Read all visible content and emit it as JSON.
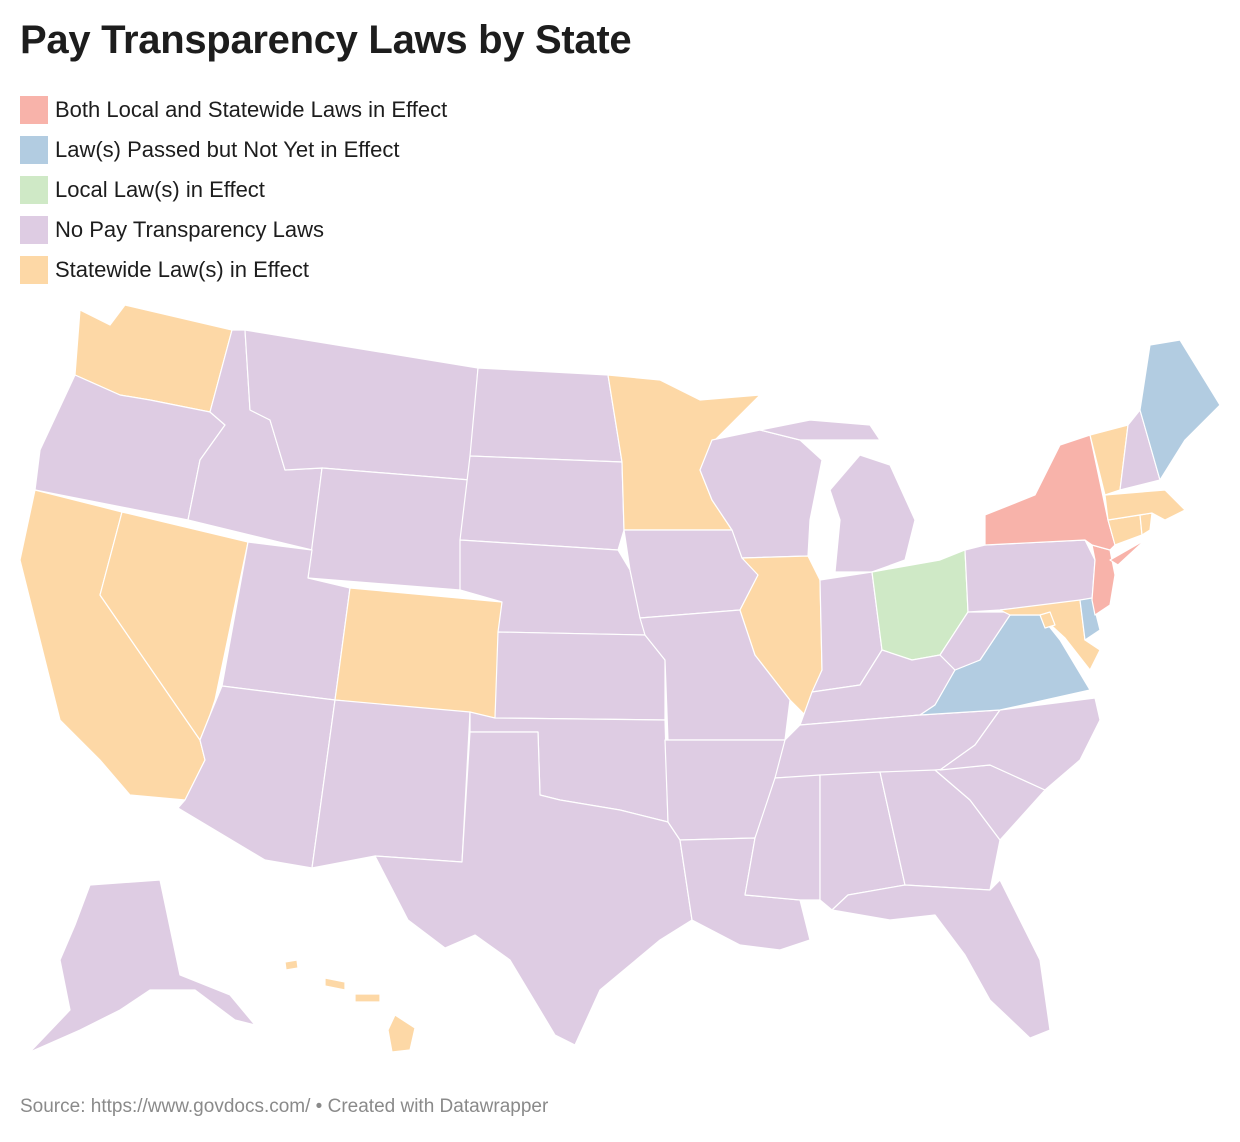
{
  "title": "Pay Transparency Laws by State",
  "legend": [
    {
      "label": "Both Local and Statewide Laws in Effect",
      "color": "#f8b3aa"
    },
    {
      "label": "Law(s) Passed but Not Yet in Effect",
      "color": "#b2cce1"
    },
    {
      "label": "Local Law(s) in Effect",
      "color": "#cfe9c6"
    },
    {
      "label": "No Pay Transparency Laws",
      "color": "#decce3"
    },
    {
      "label": "Statewide Law(s) in Effect",
      "color": "#fdd8a6"
    }
  ],
  "states": {
    "WA": "Statewide Law(s) in Effect",
    "OR": "No Pay Transparency Laws",
    "CA": "Statewide Law(s) in Effect",
    "NV": "Statewide Law(s) in Effect",
    "ID": "No Pay Transparency Laws",
    "MT": "No Pay Transparency Laws",
    "WY": "No Pay Transparency Laws",
    "UT": "No Pay Transparency Laws",
    "AZ": "No Pay Transparency Laws",
    "CO": "Statewide Law(s) in Effect",
    "NM": "No Pay Transparency Laws",
    "ND": "No Pay Transparency Laws",
    "SD": "No Pay Transparency Laws",
    "NE": "No Pay Transparency Laws",
    "KS": "No Pay Transparency Laws",
    "OK": "No Pay Transparency Laws",
    "TX": "No Pay Transparency Laws",
    "MN": "Statewide Law(s) in Effect",
    "IA": "No Pay Transparency Laws",
    "MO": "No Pay Transparency Laws",
    "AR": "No Pay Transparency Laws",
    "LA": "No Pay Transparency Laws",
    "WI": "No Pay Transparency Laws",
    "IL": "Statewide Law(s) in Effect",
    "MI": "No Pay Transparency Laws",
    "IN": "No Pay Transparency Laws",
    "OH": "Local Law(s) in Effect",
    "KY": "No Pay Transparency Laws",
    "TN": "No Pay Transparency Laws",
    "MS": "No Pay Transparency Laws",
    "AL": "No Pay Transparency Laws",
    "GA": "No Pay Transparency Laws",
    "FL": "No Pay Transparency Laws",
    "SC": "No Pay Transparency Laws",
    "NC": "No Pay Transparency Laws",
    "VA": "Law(s) Passed but Not Yet in Effect",
    "WV": "No Pay Transparency Laws",
    "PA": "No Pay Transparency Laws",
    "NY": "Both Local and Statewide Laws in Effect",
    "NJ": "Both Local and Statewide Laws in Effect",
    "DE": "Law(s) Passed but Not Yet in Effect",
    "MD": "Statewide Law(s) in Effect",
    "DC": "Statewide Law(s) in Effect",
    "CT": "Statewide Law(s) in Effect",
    "RI": "Statewide Law(s) in Effect",
    "MA": "Statewide Law(s) in Effect",
    "VT": "Statewide Law(s) in Effect",
    "NH": "No Pay Transparency Laws",
    "ME": "Law(s) Passed but Not Yet in Effect",
    "AK": "No Pay Transparency Laws",
    "HI": "Statewide Law(s) in Effect"
  },
  "footer": "Source: https://www.govdocs.com/ • Created with Datawrapper"
}
